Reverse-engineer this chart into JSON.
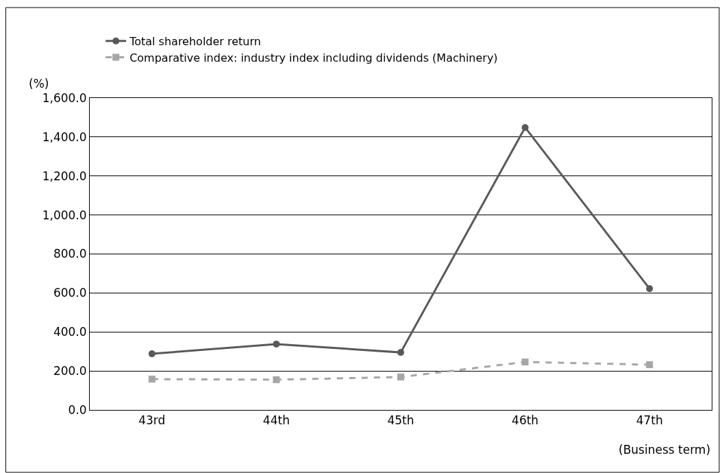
{
  "chart_data": {
    "type": "line",
    "categories": [
      "43rd",
      "44th",
      "45th",
      "46th",
      "47th"
    ],
    "series": [
      {
        "name": "Total shareholder return",
        "color": "#595959",
        "values": [
          288,
          338,
          295,
          1449,
          622
        ],
        "marker": "circle",
        "line_style": "solid"
      },
      {
        "name": "Comparative index: industry index including dividends (Machinery)",
        "color": "#a6a6a6",
        "values": [
          158,
          155,
          169,
          246,
          232
        ],
        "marker": "square",
        "line_style": "dashed"
      }
    ],
    "ylabel": "(%)",
    "xlabel": "(Business term)",
    "ylim": [
      0,
      1600
    ],
    "yticks": [
      {
        "value": 0,
        "label": "0.0"
      },
      {
        "value": 200,
        "label": "200.0"
      },
      {
        "value": 400,
        "label": "400.0"
      },
      {
        "value": 600,
        "label": "600.0"
      },
      {
        "value": 800,
        "label": "800.0"
      },
      {
        "value": 1000,
        "label": "1,000.0"
      },
      {
        "value": 1200,
        "label": "1,200.0"
      },
      {
        "value": 1400,
        "label": "1,400.0"
      },
      {
        "value": 1600,
        "label": "1,600.0"
      }
    ],
    "grid": "y",
    "legend": "top left"
  }
}
